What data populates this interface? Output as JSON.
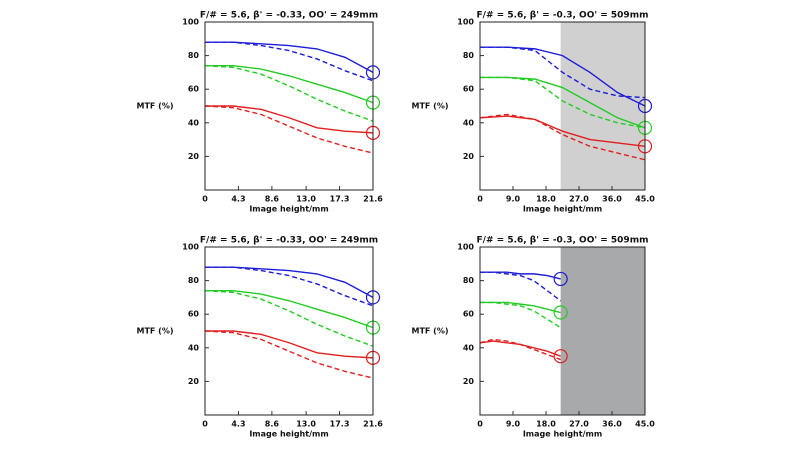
{
  "chart_data": [
    {
      "type": "line",
      "title": "F/# = 5.6, β' = -0.33, OO' = 249mm",
      "x_label": "Image height/mm",
      "y_label": "MTF (%)",
      "x": [
        0,
        3.6,
        7.2,
        10.8,
        14.4,
        18,
        21.6
      ],
      "xlim": [
        0,
        21.6
      ],
      "xticks": [
        0,
        4.3,
        8.6,
        {
          "value": 13,
          "label": "13.0"
        },
        17.3,
        21.6
      ],
      "ylim": [
        0,
        100
      ],
      "yticks": [
        20,
        40,
        60,
        80,
        100
      ],
      "series": [
        {
          "color": "#1c1cd6",
          "dashed": false,
          "end_marker": true,
          "values": [
            88,
            88,
            87,
            86,
            84,
            79,
            70
          ]
        },
        {
          "color": "#1c1cd6",
          "dashed": true,
          "end_marker": false,
          "values": [
            88,
            88,
            86,
            83,
            78,
            71,
            65
          ]
        },
        {
          "color": "#22cc22",
          "dashed": false,
          "end_marker": true,
          "values": [
            74,
            74,
            72,
            68,
            63,
            58,
            52
          ]
        },
        {
          "color": "#22cc22",
          "dashed": true,
          "end_marker": false,
          "values": [
            74,
            73,
            69,
            62,
            54,
            47,
            41
          ]
        },
        {
          "color": "#e0201f",
          "dashed": false,
          "end_marker": true,
          "values": [
            50,
            50,
            48,
            43,
            37,
            35,
            34
          ]
        },
        {
          "color": "#e0201f",
          "dashed": true,
          "end_marker": false,
          "values": [
            50,
            49,
            45,
            38,
            31,
            26,
            22
          ]
        }
      ]
    },
    {
      "type": "line",
      "title": "F/# = 5.6, β' = -0.3, OO' = 509mm",
      "x_label": "Image height/mm",
      "y_label": "MTF (%)",
      "x": [
        0,
        7.5,
        15,
        22.5,
        30,
        37.5,
        45
      ],
      "xlim": [
        0,
        45
      ],
      "xticks": [
        0,
        {
          "value": 9,
          "label": "9.0"
        },
        {
          "value": 18,
          "label": "18.0"
        },
        {
          "value": 27,
          "label": "27.0"
        },
        {
          "value": 36,
          "label": "36.0"
        },
        {
          "value": 45,
          "label": "45.0"
        }
      ],
      "ylim": [
        0,
        100
      ],
      "yticks": [
        20,
        40,
        60,
        80,
        100
      ],
      "shaded_region": [
        22,
        45
      ],
      "shade_color": "#d0d0d0",
      "series": [
        {
          "color": "#1c1cd6",
          "dashed": false,
          "end_marker": true,
          "values": [
            85,
            85,
            84,
            80,
            70,
            58,
            50
          ]
        },
        {
          "color": "#1c1cd6",
          "dashed": true,
          "end_marker": false,
          "values": [
            85,
            85,
            83,
            70,
            60,
            56,
            55
          ]
        },
        {
          "color": "#22cc22",
          "dashed": false,
          "end_marker": true,
          "values": [
            67,
            67,
            66,
            61,
            52,
            43,
            37
          ]
        },
        {
          "color": "#22cc22",
          "dashed": true,
          "end_marker": false,
          "values": [
            67,
            67,
            65,
            53,
            45,
            40,
            37
          ]
        },
        {
          "color": "#e0201f",
          "dashed": false,
          "end_marker": true,
          "values": [
            43,
            44,
            42,
            35,
            30,
            28,
            26
          ]
        },
        {
          "color": "#e0201f",
          "dashed": true,
          "end_marker": false,
          "values": [
            43,
            45,
            42,
            33,
            26,
            22,
            18
          ]
        }
      ]
    },
    {
      "type": "line",
      "title": "F/# = 5.6, β' = -0.33, OO' = 249mm",
      "x_label": "Image height/mm",
      "y_label": "MTF (%)",
      "x": [
        0,
        3.6,
        7.2,
        10.8,
        14.4,
        18,
        21.6
      ],
      "xlim": [
        0,
        21.6
      ],
      "xticks": [
        0,
        4.3,
        8.6,
        {
          "value": 13,
          "label": "13.0"
        },
        17.3,
        21.6
      ],
      "ylim": [
        0,
        100
      ],
      "yticks": [
        20,
        40,
        60,
        80,
        100
      ],
      "series": [
        {
          "color": "#1c1cd6",
          "dashed": false,
          "end_marker": true,
          "values": [
            88,
            88,
            87,
            86,
            84,
            79,
            70
          ]
        },
        {
          "color": "#1c1cd6",
          "dashed": true,
          "end_marker": false,
          "values": [
            88,
            88,
            86,
            83,
            78,
            71,
            65
          ]
        },
        {
          "color": "#22cc22",
          "dashed": false,
          "end_marker": true,
          "values": [
            74,
            74,
            72,
            68,
            63,
            58,
            52
          ]
        },
        {
          "color": "#22cc22",
          "dashed": true,
          "end_marker": false,
          "values": [
            74,
            73,
            69,
            62,
            54,
            47,
            41
          ]
        },
        {
          "color": "#e0201f",
          "dashed": false,
          "end_marker": true,
          "values": [
            50,
            50,
            48,
            43,
            37,
            35,
            34
          ]
        },
        {
          "color": "#e0201f",
          "dashed": true,
          "end_marker": false,
          "values": [
            50,
            49,
            45,
            38,
            31,
            26,
            22
          ]
        }
      ]
    },
    {
      "type": "line",
      "title": "F/# = 5.6, β' = -0.3, OO' = 509mm",
      "x_label": "Image height/mm",
      "y_label": "MTF (%)",
      "x": [
        0,
        3.67,
        7.33,
        11,
        14.67,
        18.33,
        22
      ],
      "xlim": [
        0,
        45
      ],
      "xticks": [
        0,
        {
          "value": 9,
          "label": "9.0"
        },
        {
          "value": 18,
          "label": "18.0"
        },
        {
          "value": 27,
          "label": "27.0"
        },
        {
          "value": 36,
          "label": "36.0"
        },
        {
          "value": 45,
          "label": "45.0"
        }
      ],
      "ylim": [
        0,
        100
      ],
      "yticks": [
        20,
        40,
        60,
        80,
        100
      ],
      "shaded_region": [
        22,
        45
      ],
      "shade_color": "#a8a9ab",
      "series": [
        {
          "color": "#1c1cd6",
          "dashed": false,
          "end_marker": true,
          "values": [
            85,
            85,
            85,
            84,
            84,
            83,
            81
          ]
        },
        {
          "color": "#1c1cd6",
          "dashed": true,
          "end_marker": false,
          "values": [
            85,
            85,
            84,
            83,
            80,
            74,
            68
          ]
        },
        {
          "color": "#22cc22",
          "dashed": false,
          "end_marker": true,
          "values": [
            67,
            67,
            67,
            66,
            65,
            63,
            61
          ]
        },
        {
          "color": "#22cc22",
          "dashed": true,
          "end_marker": false,
          "values": [
            67,
            67,
            66,
            65,
            62,
            57,
            52
          ]
        },
        {
          "color": "#e0201f",
          "dashed": false,
          "end_marker": true,
          "values": [
            43,
            44,
            43,
            42,
            40,
            38,
            35
          ]
        },
        {
          "color": "#e0201f",
          "dashed": true,
          "end_marker": false,
          "values": [
            43,
            45,
            44,
            42,
            39,
            36,
            33
          ]
        }
      ]
    }
  ]
}
